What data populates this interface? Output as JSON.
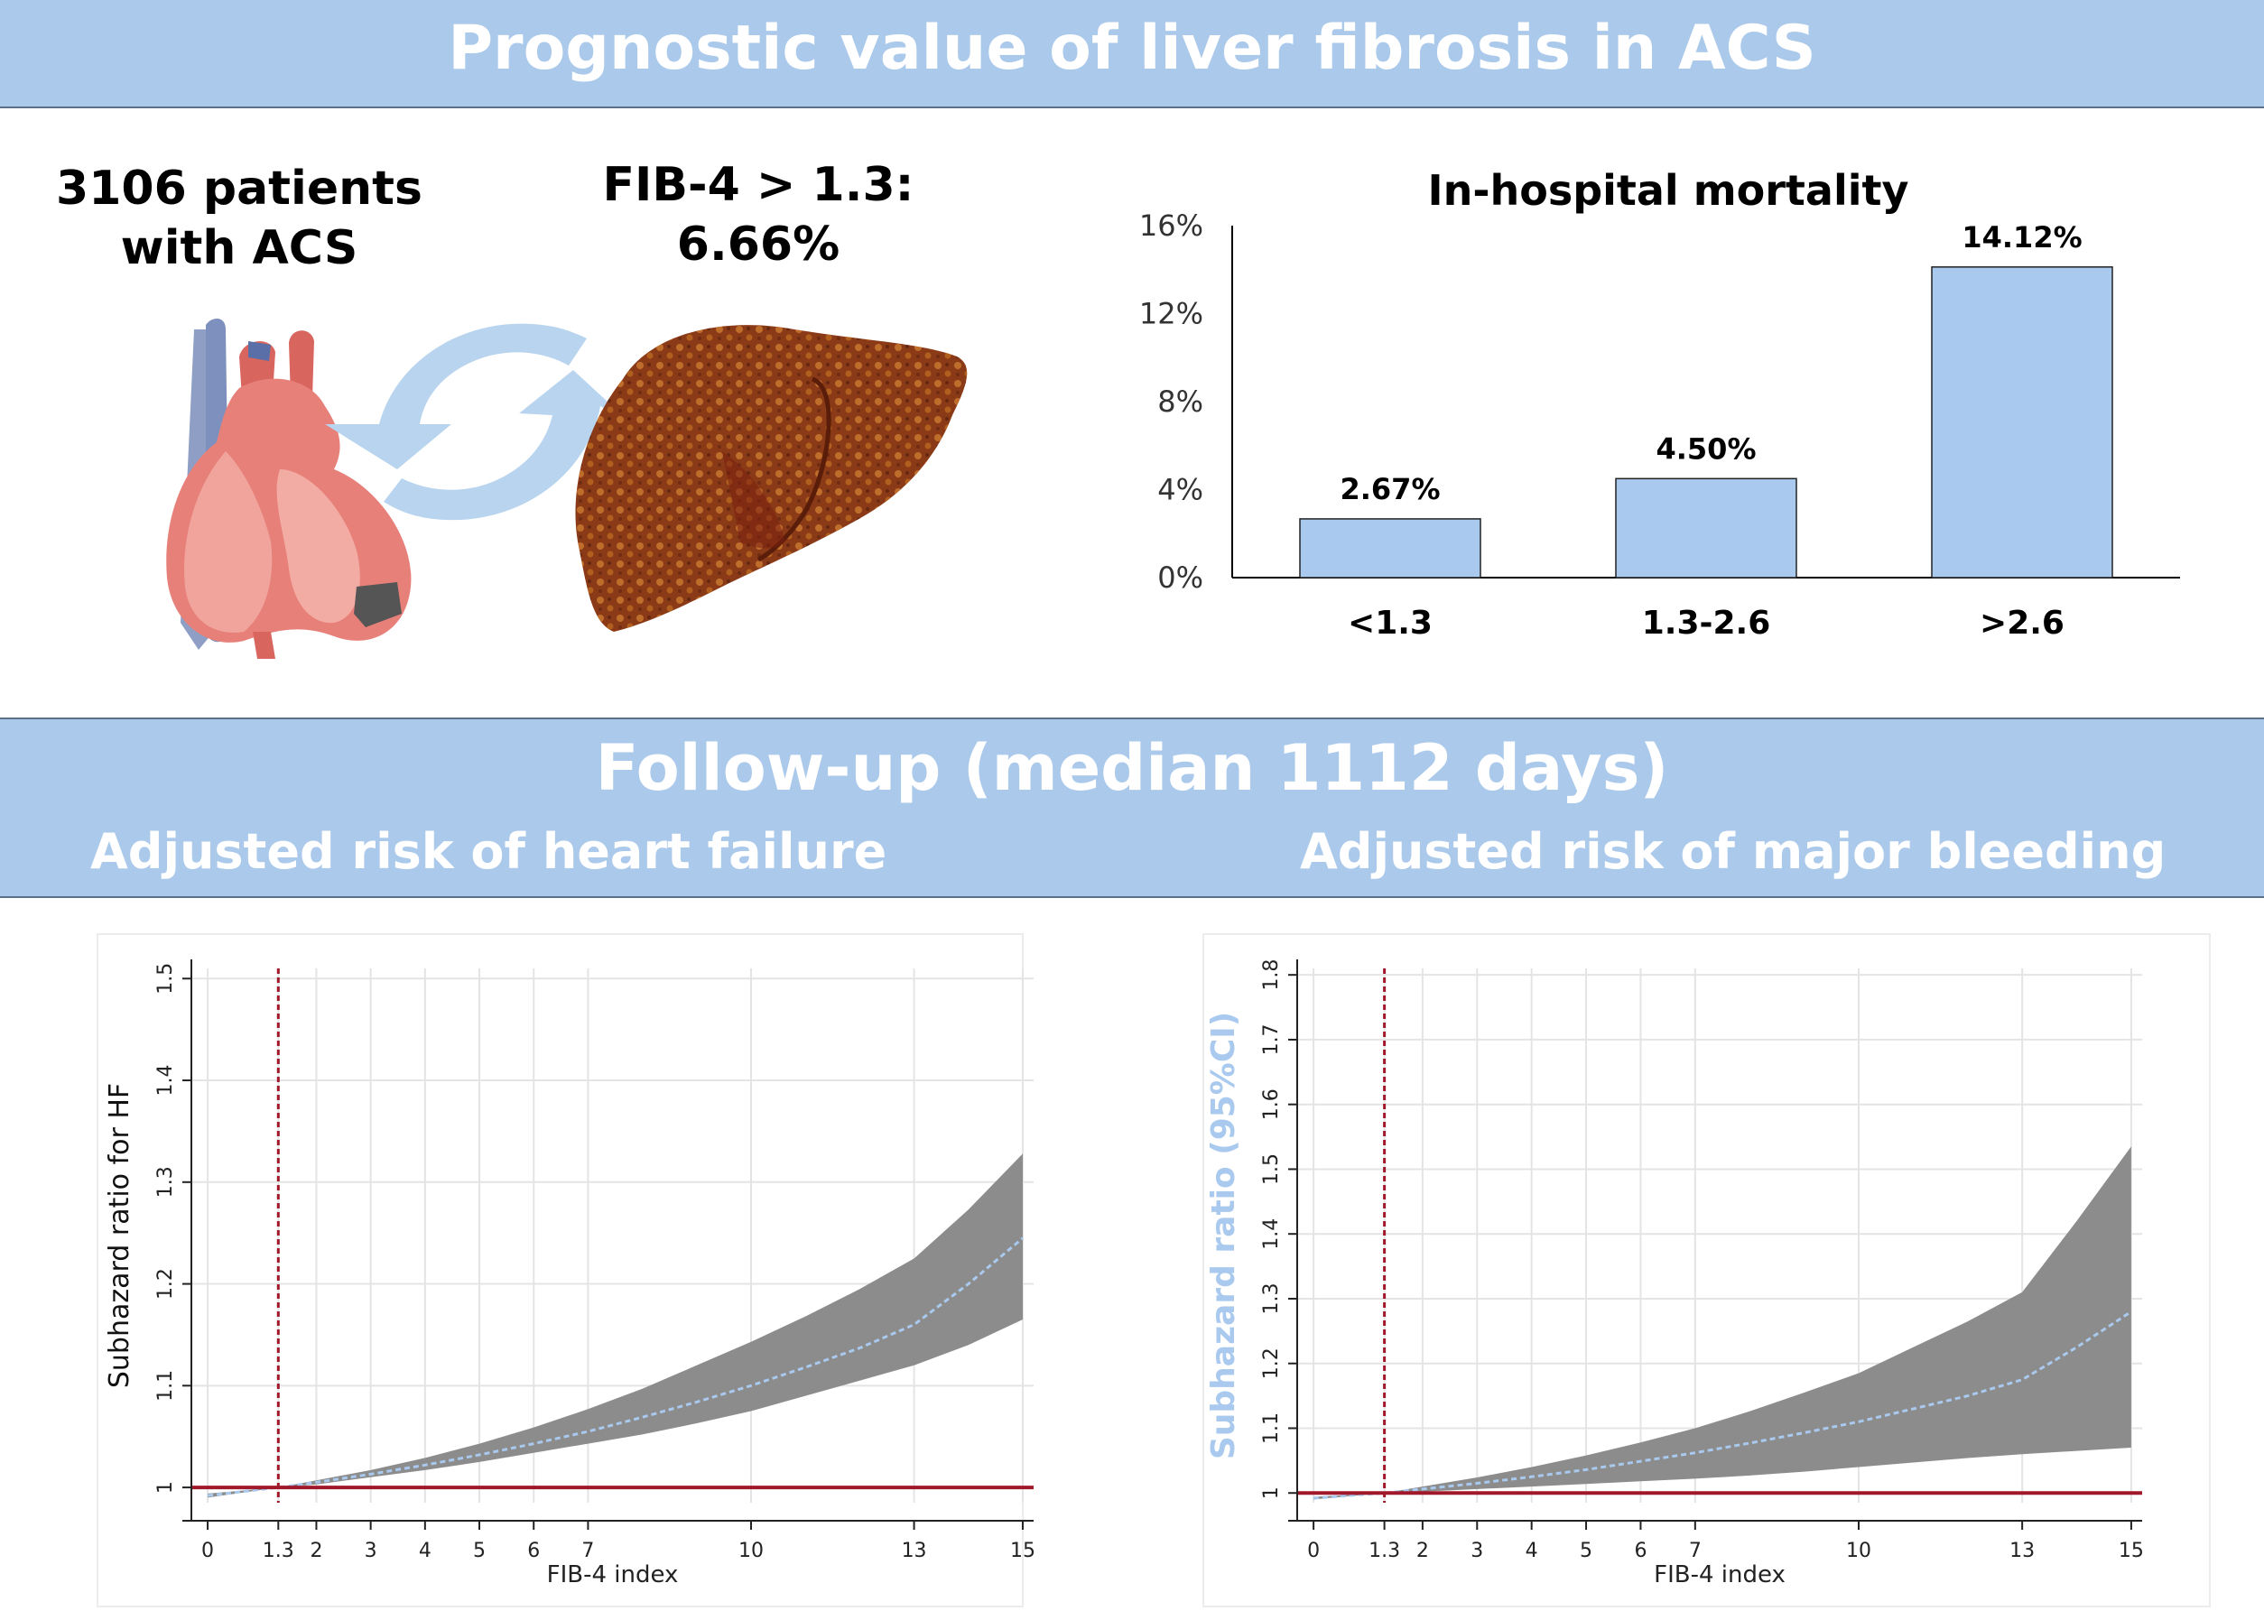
{
  "header": {
    "title": "Prognostic value of liver fibrosis in ACS"
  },
  "stats": {
    "patients_line1": "3106 patients",
    "patients_line2": "with ACS",
    "fib_line1": "FIB-4 > 1.3:",
    "fib_line2": "6.66%"
  },
  "followup": {
    "title": "Follow-up (median 1112 days)",
    "hf_title": "Adjusted risk of heart failure",
    "bleed_title": "Adjusted risk of major bleeding"
  },
  "colors": {
    "banner": "#abc9eb",
    "bar": "#a9c9ee",
    "ci_band": "#8c8c8c",
    "estimate_line": "#a9c9ee",
    "reference_line": "#a0182a",
    "heart": "#e8807a",
    "vessel": "#8e9ec4",
    "liver": "#8a3a16",
    "arrow": "#b8d4ee"
  },
  "icons": [
    "heart-illustration",
    "refresh-arrows-icon",
    "liver-illustration"
  ],
  "chart_data": [
    {
      "type": "bar",
      "title": "In-hospital mortality",
      "categories": [
        "<1.3",
        "1.3-2.6",
        ">2.6"
      ],
      "values": [
        2.67,
        4.5,
        14.12
      ],
      "data_labels": [
        "2.67%",
        "4.50%",
        "14.12%"
      ],
      "yticks": [
        "0%",
        "4%",
        "8%",
        "12%",
        "16%"
      ],
      "ylim": [
        0,
        16
      ],
      "grid": false
    },
    {
      "type": "area",
      "ylabel": "Subhazard ratio for HF",
      "xlabel": "FIB-4 index",
      "xlim": [
        -0.3,
        15.2
      ],
      "ylim": [
        0.985,
        1.51
      ],
      "xticks": [
        0,
        1.3,
        2,
        3,
        4,
        5,
        6,
        7,
        10,
        13,
        15
      ],
      "xtick_labels": [
        "0",
        "1.3",
        "2",
        "3",
        "4",
        "5",
        "6",
        "7",
        "10",
        "13",
        "15"
      ],
      "yticks": [
        1,
        1.1,
        1.2,
        1.3,
        1.4,
        1.5
      ],
      "ytick_labels": [
        "1",
        "1.1",
        "1.2",
        "1.3",
        "1.4",
        "1.5"
      ],
      "reference_x": 1.3,
      "reference_y": 1,
      "grid": true,
      "x": [
        0,
        1.3,
        2,
        3,
        4,
        5,
        6,
        7,
        8,
        9,
        10,
        11,
        12,
        13,
        14,
        15
      ],
      "estimate": [
        0.992,
        1,
        1.005,
        1.013,
        1.022,
        1.032,
        1.043,
        1.055,
        1.069,
        1.084,
        1.1,
        1.118,
        1.137,
        1.16,
        1.2,
        1.245
      ],
      "ci_upper": [
        0.994,
        1,
        1.007,
        1.017,
        1.029,
        1.043,
        1.059,
        1.077,
        1.097,
        1.12,
        1.143,
        1.168,
        1.195,
        1.225,
        1.273,
        1.328
      ],
      "ci_lower": [
        0.99,
        1,
        1.003,
        1.01,
        1.017,
        1.025,
        1.034,
        1.043,
        1.052,
        1.063,
        1.075,
        1.09,
        1.105,
        1.12,
        1.14,
        1.165
      ]
    },
    {
      "type": "area",
      "ylabel": "Subhazard ratio (95%CI)",
      "xlabel": "FIB-4 index",
      "xlim": [
        -0.3,
        15.2
      ],
      "ylim": [
        0.985,
        1.81
      ],
      "xticks": [
        0,
        1.3,
        2,
        3,
        4,
        5,
        6,
        7,
        10,
        13,
        15
      ],
      "xtick_labels": [
        "0",
        "1.3",
        "2",
        "3",
        "4",
        "5",
        "6",
        "7",
        "10",
        "13",
        "15"
      ],
      "yticks": [
        1,
        1.1,
        1.2,
        1.3,
        1.4,
        1.5,
        1.6,
        1.7,
        1.8
      ],
      "ytick_labels": [
        "1",
        "1.1",
        "1.2",
        "1.3",
        "1.4",
        "1.5",
        "1.6",
        "1.7",
        "1.8"
      ],
      "reference_x": 1.3,
      "reference_y": 1,
      "grid": true,
      "x": [
        0,
        1.3,
        2,
        3,
        4,
        5,
        6,
        7,
        8,
        9,
        10,
        11,
        12,
        13,
        14,
        15
      ],
      "estimate": [
        0.992,
        1,
        1.006,
        1.015,
        1.025,
        1.036,
        1.049,
        1.062,
        1.077,
        1.093,
        1.11,
        1.13,
        1.15,
        1.175,
        1.225,
        1.28
      ],
      "ci_upper": [
        0.994,
        1,
        1.01,
        1.024,
        1.04,
        1.058,
        1.078,
        1.1,
        1.126,
        1.155,
        1.185,
        1.225,
        1.265,
        1.31,
        1.42,
        1.535
      ],
      "ci_lower": [
        0.99,
        1,
        1.002,
        1.006,
        1.01,
        1.014,
        1.018,
        1.022,
        1.027,
        1.033,
        1.04,
        1.047,
        1.054,
        1.06,
        1.065,
        1.07
      ]
    }
  ]
}
